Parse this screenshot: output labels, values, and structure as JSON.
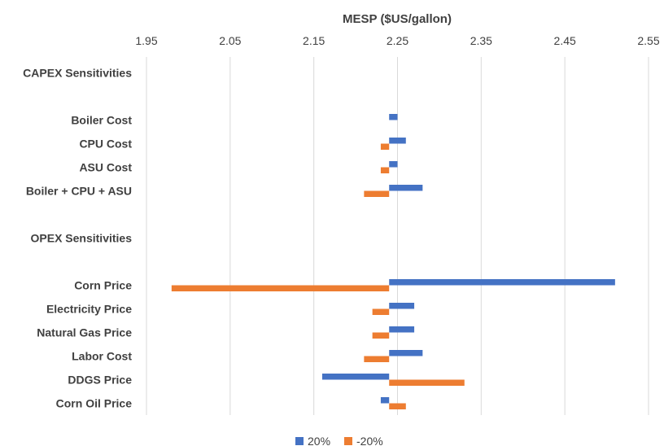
{
  "chart_data": {
    "type": "bar",
    "orientation": "horizontal",
    "xlabel": "MESP ($US/gallon)",
    "x_axis_position": "top",
    "xlim": [
      1.95,
      2.55
    ],
    "xticks": [
      "1.95",
      "2.05",
      "2.15",
      "2.25",
      "2.35",
      "2.45",
      "2.55"
    ],
    "baseline": 2.24,
    "grid": true,
    "legend_position": "bottom",
    "categories": [
      "CAPEX Sensitivities",
      "",
      "Boiler Cost",
      "CPU Cost",
      "ASU Cost",
      "Boiler + CPU + ASU",
      "",
      "OPEX Sensitivities",
      "",
      "Corn Price",
      "Electricity Price",
      "Natural Gas Price",
      "Labor Cost",
      "DDGS Price",
      "Corn Oil Price"
    ],
    "series": [
      {
        "name": "20%",
        "color": "#4472C4",
        "values": [
          null,
          null,
          2.25,
          2.26,
          2.25,
          2.28,
          null,
          null,
          null,
          2.51,
          2.27,
          2.27,
          2.28,
          2.16,
          2.23
        ]
      },
      {
        "name": "-20%",
        "color": "#ED7D31",
        "values": [
          null,
          null,
          null,
          2.23,
          2.23,
          2.21,
          null,
          null,
          null,
          1.98,
          2.22,
          2.22,
          2.21,
          2.33,
          2.26
        ]
      }
    ],
    "gridline_color": "#D9D9D9"
  }
}
